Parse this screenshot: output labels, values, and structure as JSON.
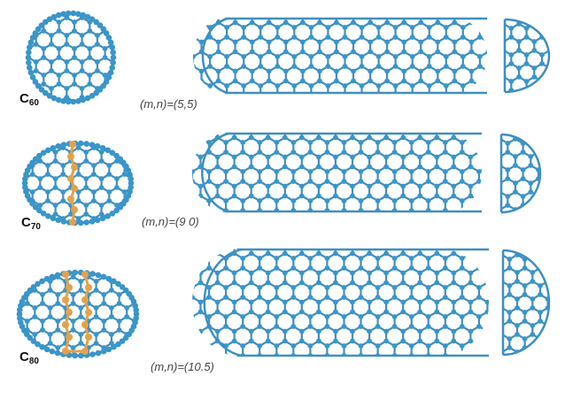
{
  "molecules": [
    {
      "label": "C",
      "subscript": "60",
      "chirality": "(m,n)=(5,5)"
    },
    {
      "label": "C",
      "subscript": "70",
      "chirality": "(m,n)=(9 0)"
    },
    {
      "label": "C",
      "subscript": "80",
      "chirality": "(m,n)=(10.5)"
    }
  ],
  "colors": {
    "carbon": "#3a95c9",
    "bond": "#3f8fc2",
    "highlight": "#e3a24a"
  }
}
